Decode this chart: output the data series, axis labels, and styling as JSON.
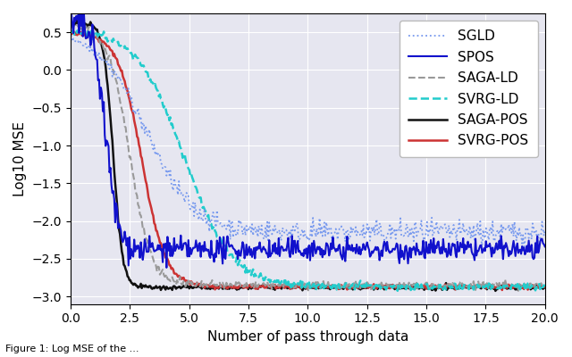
{
  "title": "",
  "xlabel": "Number of pass through data",
  "ylabel": "Log10 MSE",
  "xlim": [
    0,
    20.0
  ],
  "ylim": [
    -3.1,
    0.75
  ],
  "xticks": [
    0.0,
    2.5,
    5.0,
    7.5,
    10.0,
    12.5,
    15.0,
    17.5,
    20.0
  ],
  "yticks": [
    -3.0,
    -2.5,
    -2.0,
    -1.5,
    -1.0,
    -0.5,
    0.0,
    0.5
  ],
  "background_color": "#E6E6F0",
  "legend_entries": [
    "SGLD",
    "SPOS",
    "SAGA-LD",
    "SVRG-LD",
    "SAGA-POS",
    "SVRG-POS"
  ],
  "colors": {
    "SGLD": "#7799EE",
    "SPOS": "#1111CC",
    "SAGA-LD": "#999999",
    "SVRG-LD": "#22CCCC",
    "SAGA-POS": "#111111",
    "SVRG-POS": "#CC3333"
  },
  "linestyles": {
    "SGLD": "dotted",
    "SPOS": "solid",
    "SAGA-LD": "dashed",
    "SVRG-LD": "dashed",
    "SAGA-POS": "solid",
    "SVRG-POS": "solid"
  },
  "linewidths": {
    "SGLD": 1.3,
    "SPOS": 1.5,
    "SAGA-LD": 1.5,
    "SVRG-LD": 1.8,
    "SAGA-POS": 1.8,
    "SVRG-POS": 1.8
  },
  "n_points": 500,
  "seed": 42,
  "caption": "Figure 1: Log MSE of the ..."
}
